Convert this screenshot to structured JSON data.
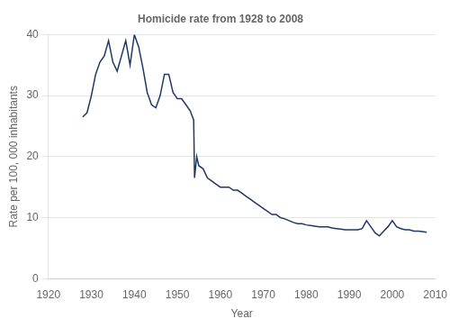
{
  "chart_data": {
    "type": "line",
    "title": "Homicide rate from 1928 to 2008",
    "xlabel": "Year",
    "ylabel": "Rate per 100, 000 inhabitants",
    "color": "#1f3864",
    "xlim": [
      1920,
      2010
    ],
    "ylim": [
      0,
      40
    ],
    "xticks": [
      1920,
      1930,
      1940,
      1950,
      1960,
      1970,
      1980,
      1990,
      2000,
      2010
    ],
    "yticks": [
      0,
      10,
      20,
      30,
      40
    ],
    "grid": "y",
    "x": [
      1928,
      1929,
      1930,
      1931,
      1932,
      1933,
      1934,
      1935,
      1936,
      1937,
      1938,
      1939,
      1940,
      1941,
      1942,
      1943,
      1944,
      1945,
      1946,
      1947,
      1948,
      1949,
      1950,
      1951,
      1952,
      1953,
      1953.8,
      1954,
      1954.5,
      1955,
      1956,
      1957,
      1958,
      1959,
      1960,
      1961,
      1962,
      1963,
      1964,
      1965,
      1966,
      1967,
      1968,
      1969,
      1970,
      1971,
      1972,
      1973,
      1974,
      1975,
      1976,
      1977,
      1978,
      1979,
      1980,
      1981,
      1982,
      1983,
      1984,
      1985,
      1986,
      1987,
      1988,
      1989,
      1990,
      1991,
      1992,
      1993,
      1994,
      1995,
      1996,
      1997,
      1998,
      1999,
      2000,
      2001,
      2002,
      2003,
      2004,
      2005,
      2006,
      2007,
      2008
    ],
    "values": [
      26.5,
      27.2,
      30.0,
      33.5,
      35.5,
      36.5,
      39.0,
      35.5,
      34.0,
      36.5,
      39.0,
      35.0,
      40.0,
      38.0,
      34.5,
      30.5,
      28.5,
      28.0,
      30.0,
      33.5,
      33.5,
      30.5,
      29.5,
      29.5,
      28.5,
      27.5,
      26.0,
      16.5,
      20.0,
      18.5,
      18.0,
      16.5,
      16.0,
      15.5,
      15.0,
      15.0,
      15.0,
      14.5,
      14.5,
      14.0,
      13.5,
      13.0,
      12.5,
      12.0,
      11.5,
      11.0,
      10.5,
      10.5,
      10.0,
      9.8,
      9.5,
      9.2,
      9.0,
      9.0,
      8.8,
      8.7,
      8.6,
      8.5,
      8.5,
      8.5,
      8.3,
      8.2,
      8.1,
      8.0,
      8.0,
      8.0,
      8.0,
      8.2,
      9.5,
      8.5,
      7.5,
      7.0,
      7.8,
      8.5,
      9.5,
      8.5,
      8.2,
      8.0,
      8.0,
      7.8,
      7.8,
      7.7,
      7.6
    ]
  }
}
